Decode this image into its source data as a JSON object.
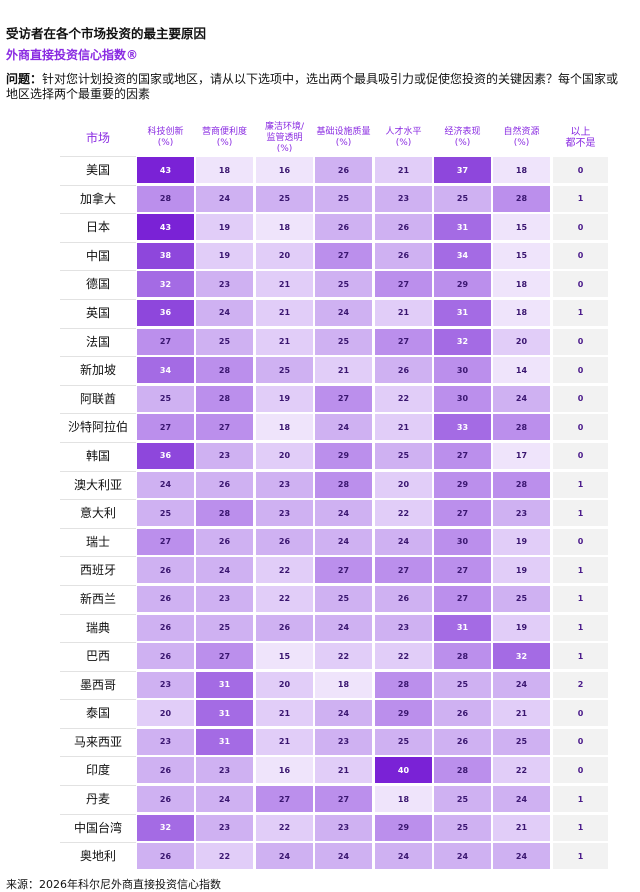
{
  "header": {
    "title": "受访者在各个市场投资的最主要原因",
    "subtitle": "外商直接投资信心指数®",
    "question_label": "问题：",
    "question_text": "针对您计划投资的国家或地区，请从以下选项中，选出两个最具吸引力或促使您投资的关键因素？每个国家或地区选择两个最重要的因素"
  },
  "footer": {
    "source": "来源：2026年科尔尼外商直接投资信心指数"
  },
  "colors": {
    "accent": "#8a2be2",
    "scale": [
      "#efe4fb",
      "#e1cdf8",
      "#cfb1f2",
      "#bb8fec",
      "#a46be4",
      "#8e47dc",
      "#7a22d6"
    ],
    "last_column_bg": "#f2f2f2"
  },
  "chart_data": {
    "type": "table",
    "row_header": "市场",
    "columns": [
      "科技创新\n(%)",
      "营商便利度\n(%)",
      "廉洁环境/\n监管透明\n(%)",
      "基础设施质量\n(%)",
      "人才水平\n(%)",
      "经济表现\n(%)",
      "自然资源\n(%)",
      "以上\n都不是"
    ],
    "rows": [
      {
        "market": "美国",
        "values": [
          43,
          18,
          16,
          26,
          21,
          37,
          18,
          0
        ]
      },
      {
        "market": "加拿大",
        "values": [
          28,
          24,
          25,
          25,
          23,
          25,
          28,
          1
        ]
      },
      {
        "market": "日本",
        "values": [
          43,
          19,
          18,
          26,
          26,
          31,
          15,
          0
        ]
      },
      {
        "market": "中国",
        "values": [
          38,
          19,
          20,
          27,
          26,
          34,
          15,
          0
        ]
      },
      {
        "market": "德国",
        "values": [
          32,
          23,
          21,
          25,
          27,
          29,
          18,
          0
        ]
      },
      {
        "market": "英国",
        "values": [
          36,
          24,
          21,
          24,
          21,
          31,
          18,
          1
        ]
      },
      {
        "market": "法国",
        "values": [
          27,
          25,
          21,
          25,
          27,
          32,
          20,
          0
        ]
      },
      {
        "market": "新加坡",
        "values": [
          34,
          28,
          25,
          21,
          26,
          30,
          14,
          0
        ]
      },
      {
        "market": "阿联酋",
        "values": [
          25,
          28,
          19,
          27,
          22,
          30,
          24,
          0
        ]
      },
      {
        "market": "沙特阿拉伯",
        "values": [
          27,
          27,
          18,
          24,
          21,
          33,
          28,
          0
        ]
      },
      {
        "market": "韩国",
        "values": [
          36,
          23,
          20,
          29,
          25,
          27,
          17,
          0
        ]
      },
      {
        "market": "澳大利亚",
        "values": [
          24,
          26,
          23,
          28,
          20,
          29,
          28,
          1
        ]
      },
      {
        "market": "意大利",
        "values": [
          25,
          28,
          23,
          24,
          22,
          27,
          23,
          1
        ]
      },
      {
        "market": "瑞士",
        "values": [
          27,
          26,
          26,
          24,
          24,
          30,
          19,
          0
        ]
      },
      {
        "market": "西班牙",
        "values": [
          26,
          24,
          22,
          27,
          27,
          27,
          19,
          1
        ]
      },
      {
        "market": "新西兰",
        "values": [
          26,
          23,
          22,
          25,
          26,
          27,
          25,
          1
        ]
      },
      {
        "market": "瑞典",
        "values": [
          26,
          25,
          26,
          24,
          23,
          31,
          19,
          1
        ]
      },
      {
        "market": "巴西",
        "values": [
          26,
          27,
          15,
          22,
          22,
          28,
          32,
          1
        ]
      },
      {
        "market": "墨西哥",
        "values": [
          23,
          31,
          20,
          18,
          28,
          25,
          24,
          2
        ]
      },
      {
        "market": "泰国",
        "values": [
          20,
          31,
          21,
          24,
          29,
          26,
          21,
          0
        ]
      },
      {
        "market": "马来西亚",
        "values": [
          23,
          31,
          21,
          23,
          25,
          26,
          25,
          0
        ]
      },
      {
        "market": "印度",
        "values": [
          26,
          23,
          16,
          21,
          40,
          28,
          22,
          0
        ]
      },
      {
        "market": "丹麦",
        "values": [
          26,
          24,
          27,
          27,
          18,
          25,
          24,
          1
        ]
      },
      {
        "market": "中国台湾",
        "values": [
          32,
          23,
          22,
          23,
          29,
          25,
          21,
          1
        ]
      },
      {
        "market": "奥地利",
        "values": [
          26,
          22,
          24,
          24,
          24,
          24,
          24,
          1
        ]
      }
    ]
  }
}
